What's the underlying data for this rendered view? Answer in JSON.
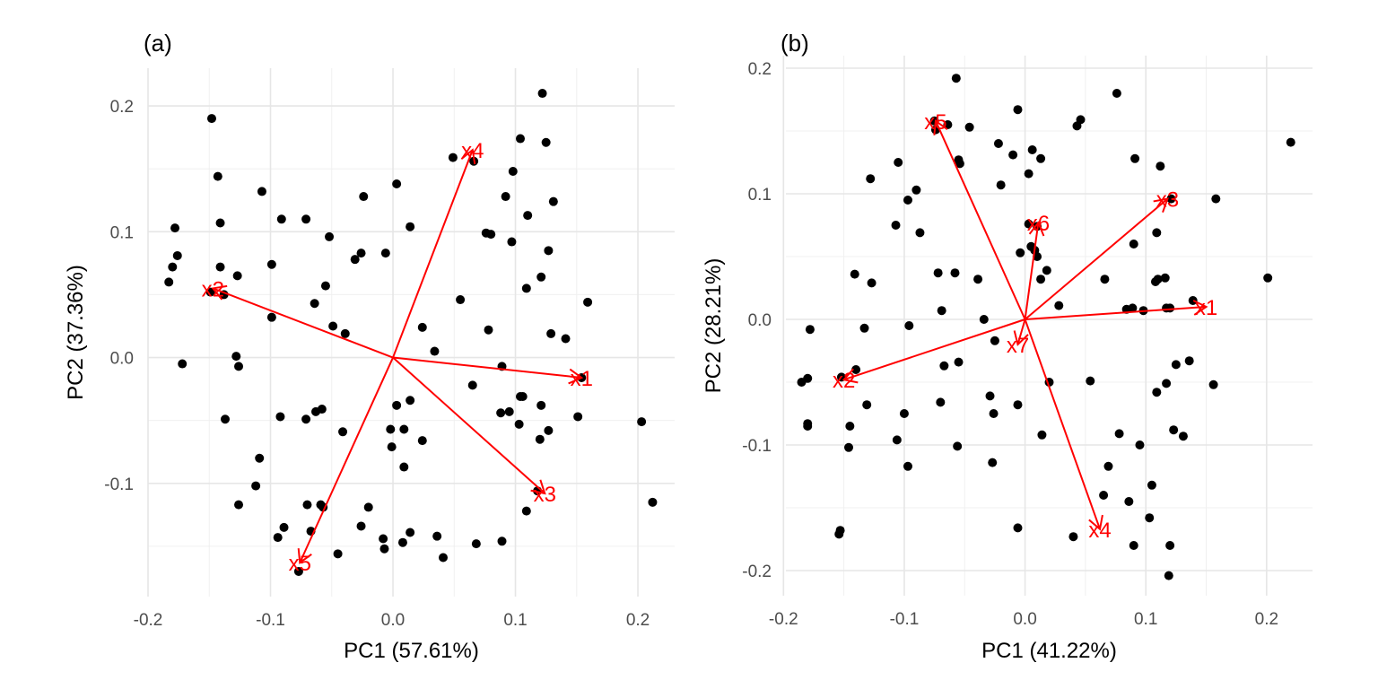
{
  "chart_data": [
    {
      "type": "scatter",
      "panel_label": "(a)",
      "xlabel": "PC1 (57.61%)",
      "ylabel": "PC2 (37.36%)",
      "xlim": [
        -0.2,
        0.23
      ],
      "ylim": [
        -0.19,
        0.23
      ],
      "xticks": [
        -0.2,
        -0.1,
        0.0,
        0.1,
        0.2
      ],
      "xtick_labels": [
        "-0.2",
        "-0.1",
        "0.0",
        "0.1",
        "0.2"
      ],
      "yticks": [
        -0.1,
        0.0,
        0.1,
        0.2
      ],
      "ytick_labels": [
        "-0.1",
        "0.0",
        "0.1",
        "0.2"
      ],
      "grid": true,
      "point_color": "#000000",
      "arrow_color": "#ff0000",
      "points": [
        [
          0.122,
          0.21
        ],
        [
          -0.148,
          0.19
        ],
        [
          0.104,
          0.174
        ],
        [
          0.125,
          0.171
        ],
        [
          0.049,
          0.159
        ],
        [
          0.066,
          0.156
        ],
        [
          -0.143,
          0.144
        ],
        [
          0.098,
          0.148
        ],
        [
          0.003,
          0.138
        ],
        [
          -0.107,
          0.132
        ],
        [
          -0.024,
          0.128
        ],
        [
          0.092,
          0.128
        ],
        [
          0.131,
          0.124
        ],
        [
          -0.141,
          0.107
        ],
        [
          -0.091,
          0.11
        ],
        [
          -0.071,
          0.11
        ],
        [
          0.11,
          0.113
        ],
        [
          -0.178,
          0.103
        ],
        [
          0.014,
          0.104
        ],
        [
          0.076,
          0.099
        ],
        [
          0.08,
          0.098
        ],
        [
          -0.052,
          0.096
        ],
        [
          0.097,
          0.092
        ],
        [
          0.127,
          0.085
        ],
        [
          -0.026,
          0.083
        ],
        [
          -0.006,
          0.083
        ],
        [
          -0.176,
          0.081
        ],
        [
          -0.031,
          0.078
        ],
        [
          -0.099,
          0.074
        ],
        [
          -0.18,
          0.072
        ],
        [
          -0.141,
          0.072
        ],
        [
          -0.127,
          0.065
        ],
        [
          0.121,
          0.064
        ],
        [
          -0.183,
          0.06
        ],
        [
          -0.055,
          0.057
        ],
        [
          0.109,
          0.055
        ],
        [
          -0.138,
          0.05
        ],
        [
          -0.149,
          0.052
        ],
        [
          0.055,
          0.046
        ],
        [
          -0.064,
          0.043
        ],
        [
          0.159,
          0.044
        ],
        [
          -0.099,
          0.032
        ],
        [
          -0.049,
          0.025
        ],
        [
          0.024,
          0.024
        ],
        [
          -0.039,
          0.019
        ],
        [
          0.078,
          0.022
        ],
        [
          0.129,
          0.019
        ],
        [
          0.141,
          0.015
        ],
        [
          0.034,
          0.005
        ],
        [
          -0.128,
          0.001
        ],
        [
          -0.172,
          -0.005
        ],
        [
          -0.126,
          -0.007
        ],
        [
          0.089,
          -0.007
        ],
        [
          0.154,
          -0.016
        ],
        [
          0.065,
          -0.022
        ],
        [
          0.104,
          -0.031
        ],
        [
          0.106,
          -0.031
        ],
        [
          0.014,
          -0.034
        ],
        [
          0.003,
          -0.038
        ],
        [
          -0.058,
          -0.041
        ],
        [
          -0.063,
          -0.043
        ],
        [
          0.121,
          -0.038
        ],
        [
          0.088,
          -0.044
        ],
        [
          0.095,
          -0.043
        ],
        [
          0.151,
          -0.047
        ],
        [
          -0.092,
          -0.047
        ],
        [
          -0.071,
          -0.049
        ],
        [
          -0.137,
          -0.049
        ],
        [
          0.103,
          -0.053
        ],
        [
          -0.041,
          -0.059
        ],
        [
          0.127,
          -0.058
        ],
        [
          0.12,
          -0.065
        ],
        [
          0.024,
          -0.066
        ],
        [
          -0.002,
          -0.057
        ],
        [
          0.009,
          -0.057
        ],
        [
          -0.001,
          -0.071
        ],
        [
          0.009,
          -0.087
        ],
        [
          -0.109,
          -0.08
        ],
        [
          -0.112,
          -0.102
        ],
        [
          0.118,
          -0.106
        ],
        [
          -0.126,
          -0.117
        ],
        [
          -0.07,
          -0.117
        ],
        [
          -0.059,
          -0.117
        ],
        [
          -0.057,
          -0.119
        ],
        [
          -0.02,
          -0.119
        ],
        [
          0.109,
          -0.122
        ],
        [
          0.212,
          -0.115
        ],
        [
          0.203,
          -0.051
        ],
        [
          -0.094,
          -0.143
        ],
        [
          -0.089,
          -0.135
        ],
        [
          -0.026,
          -0.134
        ],
        [
          -0.067,
          -0.138
        ],
        [
          -0.008,
          -0.144
        ],
        [
          0.014,
          -0.139
        ],
        [
          0.036,
          -0.142
        ],
        [
          0.008,
          -0.147
        ],
        [
          0.068,
          -0.148
        ],
        [
          0.089,
          -0.146
        ],
        [
          -0.007,
          -0.152
        ],
        [
          -0.045,
          -0.156
        ],
        [
          0.041,
          -0.159
        ],
        [
          -0.077,
          -0.17
        ]
      ],
      "arrows": [
        {
          "label": "x1",
          "x": 0.154,
          "y": -0.016
        },
        {
          "label": "x2",
          "x": -0.147,
          "y": 0.055
        },
        {
          "label": "x3",
          "x": 0.124,
          "y": -0.108
        },
        {
          "label": "x4",
          "x": 0.065,
          "y": 0.165
        },
        {
          "label": "x5",
          "x": -0.076,
          "y": -0.163
        }
      ]
    },
    {
      "type": "scatter",
      "panel_label": "(b)",
      "xlabel": "PC1 (41.22%)",
      "ylabel": "PC2 (28.21%)",
      "xlim": [
        -0.198,
        0.238
      ],
      "ylim": [
        -0.22,
        0.21
      ],
      "xticks": [
        -0.2,
        -0.1,
        0.0,
        0.1,
        0.2
      ],
      "xtick_labels": [
        "-0.2",
        "-0.1",
        "0.0",
        "0.1",
        "0.2"
      ],
      "yticks": [
        -0.2,
        -0.1,
        0.0,
        0.1,
        0.2
      ],
      "ytick_labels": [
        "-0.2",
        "-0.1",
        "0.0",
        "0.1",
        "0.2"
      ],
      "grid": true,
      "point_color": "#000000",
      "arrow_color": "#ff0000",
      "points": [
        [
          -0.057,
          0.192
        ],
        [
          0.076,
          0.18
        ],
        [
          -0.006,
          0.167
        ],
        [
          0.046,
          0.159
        ],
        [
          -0.075,
          0.158
        ],
        [
          0.043,
          0.154
        ],
        [
          -0.064,
          0.155
        ],
        [
          -0.046,
          0.153
        ],
        [
          -0.074,
          0.151
        ],
        [
          0.22,
          0.141
        ],
        [
          -0.022,
          0.14
        ],
        [
          0.006,
          0.135
        ],
        [
          0.091,
          0.128
        ],
        [
          0.013,
          0.128
        ],
        [
          -0.01,
          0.131
        ],
        [
          -0.055,
          0.127
        ],
        [
          -0.054,
          0.124
        ],
        [
          -0.105,
          0.125
        ],
        [
          0.112,
          0.122
        ],
        [
          0.003,
          0.116
        ],
        [
          -0.128,
          0.112
        ],
        [
          0.158,
          0.096
        ],
        [
          -0.02,
          0.107
        ],
        [
          -0.09,
          0.103
        ],
        [
          -0.097,
          0.095
        ],
        [
          0.121,
          0.096
        ],
        [
          -0.107,
          0.075
        ],
        [
          0.003,
          0.076
        ],
        [
          0.01,
          0.074
        ],
        [
          0.109,
          0.069
        ],
        [
          -0.087,
          0.069
        ],
        [
          0.09,
          0.06
        ],
        [
          0.005,
          0.058
        ],
        [
          0.008,
          0.055
        ],
        [
          -0.004,
          0.053
        ],
        [
          0.01,
          0.05
        ],
        [
          0.201,
          0.033
        ],
        [
          -0.127,
          0.029
        ],
        [
          -0.141,
          0.036
        ],
        [
          -0.058,
          0.037
        ],
        [
          -0.072,
          0.037
        ],
        [
          -0.039,
          0.032
        ],
        [
          0.018,
          0.039
        ],
        [
          0.013,
          0.032
        ],
        [
          0.066,
          0.032
        ],
        [
          0.108,
          0.03
        ],
        [
          0.11,
          0.032
        ],
        [
          0.116,
          0.033
        ],
        [
          0.139,
          0.015
        ],
        [
          0.12,
          0.009
        ],
        [
          0.117,
          0.009
        ],
        [
          0.089,
          0.009
        ],
        [
          0.084,
          0.008
        ],
        [
          0.098,
          0.007
        ],
        [
          0.028,
          0.011
        ],
        [
          -0.069,
          0.007
        ],
        [
          -0.034,
          0.0
        ],
        [
          -0.096,
          -0.005
        ],
        [
          -0.133,
          -0.007
        ],
        [
          -0.178,
          -0.008
        ],
        [
          -0.025,
          -0.017
        ],
        [
          -0.055,
          -0.034
        ],
        [
          -0.067,
          -0.037
        ],
        [
          0.136,
          -0.033
        ],
        [
          0.125,
          -0.036
        ],
        [
          0.117,
          -0.051
        ],
        [
          0.156,
          -0.052
        ],
        [
          0.109,
          -0.058
        ],
        [
          0.054,
          -0.049
        ],
        [
          0.02,
          -0.05
        ],
        [
          -0.14,
          -0.04
        ],
        [
          -0.152,
          -0.046
        ],
        [
          -0.18,
          -0.047
        ],
        [
          -0.185,
          -0.05
        ],
        [
          -0.006,
          -0.068
        ],
        [
          -0.029,
          -0.061
        ],
        [
          -0.07,
          -0.066
        ],
        [
          -0.131,
          -0.068
        ],
        [
          -0.026,
          -0.075
        ],
        [
          -0.1,
          -0.075
        ],
        [
          -0.18,
          -0.083
        ],
        [
          -0.18,
          -0.085
        ],
        [
          -0.145,
          -0.085
        ],
        [
          0.123,
          -0.088
        ],
        [
          0.131,
          -0.093
        ],
        [
          0.014,
          -0.092
        ],
        [
          0.078,
          -0.091
        ],
        [
          0.095,
          -0.1
        ],
        [
          -0.056,
          -0.101
        ],
        [
          -0.106,
          -0.096
        ],
        [
          -0.146,
          -0.102
        ],
        [
          -0.027,
          -0.114
        ],
        [
          -0.097,
          -0.117
        ],
        [
          0.069,
          -0.117
        ],
        [
          0.105,
          -0.132
        ],
        [
          0.065,
          -0.14
        ],
        [
          0.086,
          -0.145
        ],
        [
          0.103,
          -0.158
        ],
        [
          -0.006,
          -0.166
        ],
        [
          0.04,
          -0.173
        ],
        [
          -0.153,
          -0.168
        ],
        [
          -0.154,
          -0.171
        ],
        [
          0.09,
          -0.18
        ],
        [
          0.12,
          -0.18
        ],
        [
          0.119,
          -0.204
        ]
      ],
      "arrows": [
        {
          "label": "x1",
          "x": 0.15,
          "y": 0.01
        },
        {
          "label": "x2",
          "x": -0.15,
          "y": -0.048
        },
        {
          "label": "x3",
          "x": 0.118,
          "y": 0.096
        },
        {
          "label": "x4",
          "x": 0.062,
          "y": -0.167
        },
        {
          "label": "x5",
          "x": -0.074,
          "y": 0.158
        },
        {
          "label": "x6",
          "x": 0.011,
          "y": 0.077
        },
        {
          "label": "x7",
          "x": -0.006,
          "y": -0.02
        }
      ]
    }
  ]
}
